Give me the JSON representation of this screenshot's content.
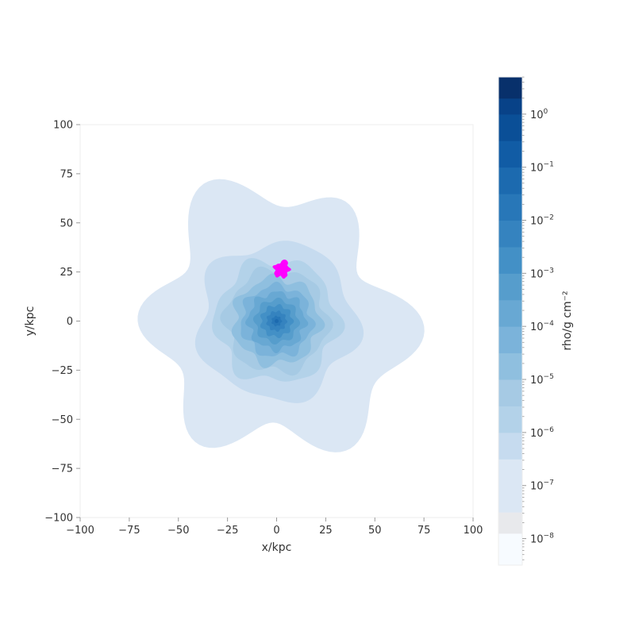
{
  "chart_data": {
    "type": "heatmap",
    "subtype": "filled-contour density map",
    "xlabel": "x/kpc",
    "ylabel": "y/kpc",
    "xlim": [
      -100,
      100
    ],
    "ylim": [
      -100,
      100
    ],
    "x_ticks": [
      -100,
      -75,
      -50,
      -25,
      0,
      25,
      50,
      75,
      100
    ],
    "y_ticks": [
      -100,
      -75,
      -50,
      -25,
      0,
      25,
      50,
      75,
      100
    ],
    "x_tick_labels": [
      "−100",
      "−75",
      "−50",
      "−25",
      "0",
      "25",
      "50",
      "75",
      "100"
    ],
    "y_tick_labels": [
      "−100",
      "−75",
      "−50",
      "−25",
      "0",
      "25",
      "50",
      "75",
      "100"
    ],
    "grid": false,
    "colorbar": {
      "label": "rho/g cm⁻²",
      "scale": "log",
      "range_log10": [
        -8.5,
        0.7
      ],
      "tick_exponents": [
        0,
        -1,
        -2,
        -3,
        -4,
        -5,
        -6,
        -7,
        -8
      ],
      "tick_base": "10",
      "colormap": "Blues",
      "levels": [
        {
          "log_min": -8.5,
          "log_max": -7.9,
          "color": "#f7fbff"
        },
        {
          "log_min": -7.9,
          "log_max": -7.5,
          "color": "#e8e9ec"
        },
        {
          "log_min": -7.5,
          "log_max": -6.5,
          "color": "#dbe7f4"
        },
        {
          "log_min": -6.5,
          "log_max": -6.0,
          "color": "#c6dbef"
        },
        {
          "log_min": -6.0,
          "log_max": -5.5,
          "color": "#b3d2e9"
        },
        {
          "log_min": -5.5,
          "log_max": -5.0,
          "color": "#a6cae4"
        },
        {
          "log_min": -5.0,
          "log_max": -4.5,
          "color": "#8fbfdf"
        },
        {
          "log_min": -4.5,
          "log_max": -4.0,
          "color": "#7bb3da"
        },
        {
          "log_min": -4.0,
          "log_max": -3.5,
          "color": "#68a8d3"
        },
        {
          "log_min": -3.5,
          "log_max": -3.0,
          "color": "#569dcc"
        },
        {
          "log_min": -3.0,
          "log_max": -2.5,
          "color": "#4390c6"
        },
        {
          "log_min": -2.5,
          "log_max": -2.0,
          "color": "#3583bf"
        },
        {
          "log_min": -2.0,
          "log_max": -1.5,
          "color": "#2877b8"
        },
        {
          "log_min": -1.5,
          "log_max": -1.0,
          "color": "#1c6aaf"
        },
        {
          "log_min": -1.0,
          "log_max": -0.5,
          "color": "#115ca5"
        },
        {
          "log_min": -0.5,
          "log_max": 0.0,
          "color": "#0a4f97"
        },
        {
          "log_min": 0.0,
          "log_max": 0.3,
          "color": "#084288"
        },
        {
          "log_min": 0.3,
          "log_max": 0.7,
          "color": "#08306b"
        }
      ]
    },
    "contours": [
      {
        "name": "outer-halo",
        "r0": 64,
        "amp": [
          [
            6,
            10,
            0.2
          ],
          [
            3,
            4,
            1.1
          ],
          [
            2,
            3,
            2.0
          ]
        ],
        "color": "#dbe7f4"
      },
      {
        "name": "ring-1",
        "r0": 40,
        "amp": [
          [
            5,
            3,
            0.6
          ],
          [
            7,
            2,
            1.5
          ]
        ],
        "color": "#c6dbef"
      },
      {
        "name": "ring-2",
        "r0": 31,
        "amp": [
          [
            6,
            2.5,
            0.3
          ],
          [
            9,
            1.5,
            1.0
          ]
        ],
        "color": "#b3d2e9"
      },
      {
        "name": "ring-3",
        "r0": 26,
        "amp": [
          [
            6,
            2,
            0.9
          ],
          [
            10,
            1.2,
            0.2
          ]
        ],
        "color": "#a6cae4"
      },
      {
        "name": "ring-4",
        "r0": 22,
        "amp": [
          [
            7,
            1.8,
            0.4
          ],
          [
            11,
            1,
            1.3
          ]
        ],
        "color": "#8fbfdf"
      },
      {
        "name": "ring-5",
        "r0": 18,
        "amp": [
          [
            7,
            1.5,
            1.1
          ],
          [
            12,
            0.8,
            0.5
          ]
        ],
        "color": "#7bb3da"
      },
      {
        "name": "ring-6",
        "r0": 14.5,
        "amp": [
          [
            8,
            1.2,
            0.2
          ],
          [
            13,
            0.7,
            1.7
          ]
        ],
        "color": "#68a8d3"
      },
      {
        "name": "ring-7",
        "r0": 11,
        "amp": [
          [
            8,
            1,
            0.8
          ]
        ],
        "color": "#569dcc"
      },
      {
        "name": "ring-8",
        "r0": 8,
        "amp": [
          [
            9,
            0.8,
            0.1
          ]
        ],
        "color": "#4390c6"
      },
      {
        "name": "ring-9",
        "r0": 5,
        "amp": [
          [
            9,
            0.5,
            0.6
          ]
        ],
        "color": "#3583bf"
      },
      {
        "name": "ring-10",
        "r0": 2.5,
        "amp": [
          [
            7,
            0.3,
            0.3
          ]
        ],
        "color": "#2877b8"
      },
      {
        "name": "core",
        "r0": 1,
        "amp": [],
        "color": "#1c6aaf"
      }
    ],
    "satellite": {
      "x": 2.5,
      "y": 26,
      "radius_kpc": 4,
      "color": "#ff00ff"
    }
  }
}
